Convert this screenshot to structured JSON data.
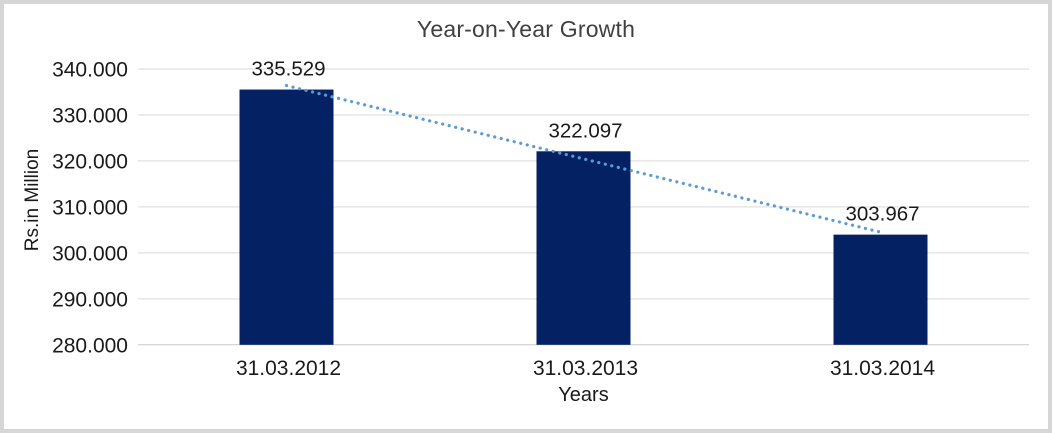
{
  "chart_data": {
    "type": "bar",
    "title": "Year-on-Year Growth",
    "xlabel": "Years",
    "ylabel": "Rs.in Million",
    "categories": [
      "31.03.2012",
      "31.03.2013",
      "31.03.2014"
    ],
    "series": [
      {
        "name": "Year-on-Year Growth",
        "values": [
          335.529,
          322.097,
          303.967
        ]
      }
    ],
    "data_labels": [
      "335.529",
      "322.097",
      "303.967"
    ],
    "ylim": [
      280,
      340
    ],
    "ytick_step": 10,
    "yticks": [
      {
        "value": 340,
        "label": "340.000"
      },
      {
        "value": 330,
        "label": "330.000"
      },
      {
        "value": 320,
        "label": "320.000"
      },
      {
        "value": 310,
        "label": "310.000"
      },
      {
        "value": 300,
        "label": "300.000"
      },
      {
        "value": 290,
        "label": "290.000"
      },
      {
        "value": 280,
        "label": "280.000"
      }
    ],
    "grid": true,
    "legend": "none",
    "trendline": {
      "type": "linear",
      "style": "dotted",
      "color": "#5B9BD5"
    },
    "colors": {
      "bar": "#032163",
      "gridline": "#D9D9D9",
      "axis_line": "#C9C9C9",
      "label_text": "#1A1A1A",
      "tick_text": "#1A1A1A",
      "title_text": "#404040",
      "frame_border": "#D6D6D6",
      "background": "#FFFFFF"
    }
  }
}
